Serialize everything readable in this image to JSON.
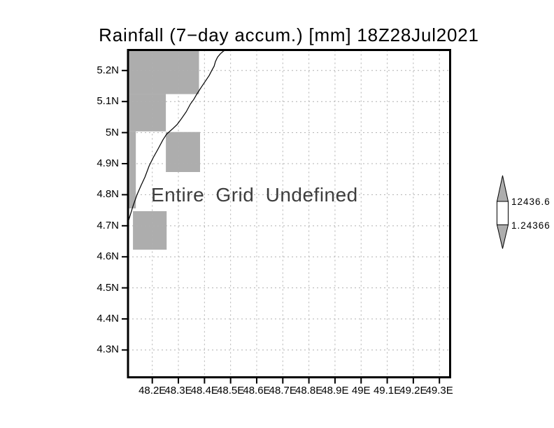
{
  "colors": {
    "background": "#ffffff",
    "mask_gray": "#adadad",
    "gridline": "#b0b0b0",
    "frame": "#000000",
    "tick": "#000000",
    "coastline": "#000000",
    "title_text": "#000000",
    "annotation_text": "#3d3d3d",
    "colorbar_arrow": "#adadad",
    "colorbar_box": "#ffffff"
  },
  "chart_data": {
    "type": "heatmap",
    "title": "Rainfall (7−day accum.) [mm] 18Z28Jul2021",
    "data_status": "Entire Grid Undefined",
    "xlabel": "",
    "ylabel": "",
    "grid": true,
    "legend_position": "right-colorbar",
    "xlim": [
      48.107,
      49.341
    ],
    "ylim": [
      4.212,
      5.266
    ],
    "x_tick_values": [
      48.2,
      48.3,
      48.4,
      48.5,
      48.6,
      48.7,
      48.8,
      48.9,
      49.0,
      49.1,
      49.2,
      49.3
    ],
    "x_tick_labels": [
      "48.2E",
      "48.3E",
      "48.4E",
      "48.5E",
      "48.6E",
      "48.7E",
      "48.8E",
      "48.9E",
      "49E",
      "49.1E",
      "49.2E",
      "49.3E"
    ],
    "y_tick_values": [
      5.2,
      5.1,
      5.0,
      4.9,
      4.8,
      4.7,
      4.6,
      4.5,
      4.4,
      4.3
    ],
    "y_tick_labels": [
      "5.2N",
      "5.1N",
      "5N",
      "4.9N",
      "4.8N",
      "4.7N",
      "4.6N",
      "4.5N",
      "4.4N",
      "4.3N"
    ],
    "colorbar": {
      "top_label": "12436.6",
      "bottom_label": "1.24366",
      "values": [
        12436.6,
        1.24366
      ]
    },
    "undefined_mask_cells_deg": [
      [
        48.107,
        5.124,
        48.379,
        5.266
      ],
      [
        48.107,
        5.004,
        48.252,
        5.124
      ],
      [
        48.107,
        4.756,
        48.137,
        5.004
      ],
      [
        48.252,
        4.873,
        48.383,
        5.002
      ],
      [
        48.126,
        4.623,
        48.255,
        4.747
      ]
    ],
    "coastline_deg": [
      [
        48.107,
        4.711
      ],
      [
        48.115,
        4.733
      ],
      [
        48.126,
        4.763
      ],
      [
        48.142,
        4.801
      ],
      [
        48.156,
        4.828
      ],
      [
        48.172,
        4.857
      ],
      [
        48.188,
        4.893
      ],
      [
        48.204,
        4.92
      ],
      [
        48.222,
        4.947
      ],
      [
        48.241,
        4.977
      ],
      [
        48.255,
        4.995
      ],
      [
        48.279,
        5.013
      ],
      [
        48.295,
        5.026
      ],
      [
        48.311,
        5.044
      ],
      [
        48.33,
        5.067
      ],
      [
        48.346,
        5.092
      ],
      [
        48.359,
        5.107
      ],
      [
        48.37,
        5.123
      ],
      [
        48.386,
        5.144
      ],
      [
        48.402,
        5.164
      ],
      [
        48.418,
        5.184
      ],
      [
        48.429,
        5.202
      ],
      [
        48.437,
        5.214
      ],
      [
        48.442,
        5.229
      ],
      [
        48.45,
        5.243
      ],
      [
        48.461,
        5.254
      ],
      [
        48.472,
        5.262
      ],
      [
        48.482,
        5.267
      ]
    ]
  }
}
